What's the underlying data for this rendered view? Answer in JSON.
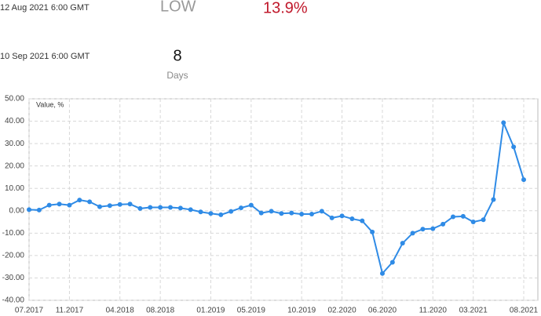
{
  "header": {
    "row1": {
      "date": "12 Aug 2021 6:00 GMT",
      "label": "LOW",
      "value": "13.9%"
    },
    "row2": {
      "date": "10 Sep 2021 6:00 GMT",
      "value": "8",
      "unit": "Days"
    }
  },
  "chart_data": {
    "type": "line",
    "y_label": "Value, %",
    "x": [
      "07.2017",
      "08.2017",
      "09.2017",
      "10.2017",
      "11.2017",
      "12.2017",
      "01.2018",
      "02.2018",
      "03.2018",
      "04.2018",
      "05.2018",
      "06.2018",
      "07.2018",
      "08.2018",
      "09.2018",
      "10.2018",
      "11.2018",
      "12.2018",
      "01.2019",
      "02.2019",
      "03.2019",
      "04.2019",
      "05.2019",
      "06.2019",
      "07.2019",
      "08.2019",
      "09.2019",
      "10.2019",
      "11.2019",
      "12.2019",
      "01.2020",
      "02.2020",
      "03.2020",
      "04.2020",
      "05.2020",
      "06.2020",
      "07.2020",
      "08.2020",
      "09.2020",
      "10.2020",
      "11.2020",
      "12.2020",
      "01.2021",
      "02.2021",
      "03.2021",
      "04.2021",
      "05.2021",
      "06.2021",
      "07.2021",
      "08.2021"
    ],
    "series": [
      {
        "color": "#2f8be6",
        "values": [
          0.5,
          0.3,
          2.5,
          3,
          2.5,
          4.8,
          4,
          1.8,
          2.3,
          2.8,
          3,
          1,
          1.5,
          1.5,
          1.5,
          1.2,
          0.5,
          -0.5,
          -1.2,
          -1.8,
          -0.3,
          1.3,
          2.5,
          -1,
          -0.2,
          -1.2,
          -1,
          -1.5,
          -1.5,
          -0.2,
          -3.2,
          -2.3,
          -3.6,
          -4.5,
          -9.5,
          -28,
          -23,
          -14.5,
          -10,
          -8.2,
          -8,
          -6,
          -2.7,
          -2.5,
          -5,
          -4,
          5,
          39.3,
          28.5,
          13.9
        ]
      }
    ],
    "xticks": [
      "07.2017",
      "11.2017",
      "04.2018",
      "08.2018",
      "01.2019",
      "05.2019",
      "10.2019",
      "02.2020",
      "06.2020",
      "11.2020",
      "03.2021",
      "08.2021"
    ],
    "ylim": [
      -40,
      50
    ],
    "yticks": [
      {
        "value": -40,
        "label": "-40.00"
      },
      {
        "value": -30,
        "label": "-30.00"
      },
      {
        "value": -20,
        "label": "-20.00"
      },
      {
        "value": -10,
        "label": "-10.00"
      },
      {
        "value": 0,
        "label": "0.00"
      },
      {
        "value": 10,
        "label": "10.00"
      },
      {
        "value": 20,
        "label": "20.00"
      },
      {
        "value": 30,
        "label": "30.00"
      },
      {
        "value": 40,
        "label": "40.00"
      },
      {
        "value": 50,
        "label": "50.00"
      }
    ],
    "grid": true
  }
}
